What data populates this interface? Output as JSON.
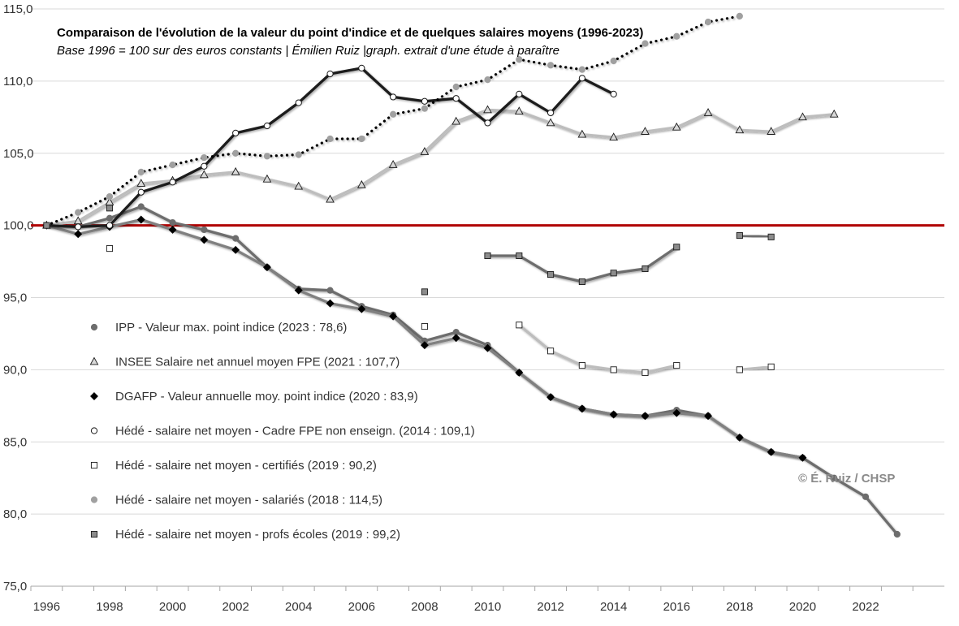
{
  "chart_data": {
    "type": "line",
    "title": "Comparaison de l'évolution de la valeur du point d'indice et de quelques salaires moyens (1996-2023)",
    "subtitle": "Base 1996 = 100 sur des euros constants | Émilien Ruiz |graph. extrait d'une étude à paraître",
    "credit": "© É. Ruiz / CHSP",
    "xlim": [
      1995.5,
      2024.5
    ],
    "ylim": [
      75,
      115
    ],
    "x_ticks": [
      1996,
      1998,
      2000,
      2002,
      2004,
      2006,
      2008,
      2010,
      2012,
      2014,
      2016,
      2018,
      2020,
      2022
    ],
    "y_ticks": [
      {
        "value": 75,
        "label": "75,0"
      },
      {
        "value": 80,
        "label": "80,0"
      },
      {
        "value": 85,
        "label": "85,0"
      },
      {
        "value": 90,
        "label": "90,0"
      },
      {
        "value": 95,
        "label": "95,0"
      },
      {
        "value": 100,
        "label": "100,0"
      },
      {
        "value": 105,
        "label": "105,0"
      },
      {
        "value": 110,
        "label": "110,0"
      },
      {
        "value": 115,
        "label": "115,0"
      }
    ],
    "grid": "horizontal",
    "reference_line": {
      "value": 100,
      "color": "#b00000"
    },
    "legend_position": "lower-left",
    "series": [
      {
        "name": "IPP - Valeur max. point indice (2023 : 78,6)",
        "color": "#6d6d6d",
        "marker": "circle",
        "marker_fill": "#6d6d6d",
        "dash": "solid",
        "x": [
          1996,
          1997,
          1998,
          1999,
          2000,
          2001,
          2002,
          2003,
          2004,
          2005,
          2006,
          2007,
          2008,
          2009,
          2010,
          2011,
          2012,
          2013,
          2014,
          2015,
          2016,
          2017,
          2018,
          2019,
          2020,
          2021,
          2022,
          2023
        ],
        "values": [
          100,
          99.9,
          100.5,
          101.3,
          100.2,
          99.7,
          99.1,
          97.1,
          95.6,
          95.5,
          94.4,
          93.8,
          92.0,
          92.6,
          91.7,
          89.8,
          88.1,
          87.3,
          86.9,
          86.8,
          87.2,
          86.8,
          85.3,
          84.3,
          83.9,
          82.5,
          81.2,
          78.6
        ]
      },
      {
        "name": "INSEE Salaire net annuel moyen FPE (2021 : 107,7)",
        "color": "#bdbdbd",
        "marker": "triangle",
        "marker_fill": "#d9d9d9",
        "dash": "solid",
        "x": [
          1996,
          1997,
          1998,
          1999,
          2000,
          2001,
          2002,
          2003,
          2004,
          2005,
          2006,
          2007,
          2008,
          2009,
          2010,
          2011,
          2012,
          2013,
          2014,
          2015,
          2016,
          2017,
          2018,
          2019,
          2020,
          2021
        ],
        "values": [
          100,
          100.3,
          101.6,
          102.9,
          103.1,
          103.5,
          103.7,
          103.2,
          102.7,
          101.8,
          102.8,
          104.2,
          105.1,
          107.2,
          108.0,
          107.9,
          107.1,
          106.3,
          106.1,
          106.5,
          106.8,
          107.8,
          106.6,
          106.5,
          107.5,
          107.7
        ]
      },
      {
        "name": "DGAFP - Valeur annuelle moy. point indice (2020 : 83,9)",
        "color": "#808080",
        "marker": "diamond",
        "marker_fill": "#000000",
        "dash": "solid",
        "x": [
          1996,
          1997,
          1998,
          1999,
          2000,
          2001,
          2002,
          2003,
          2004,
          2005,
          2006,
          2007,
          2008,
          2009,
          2010,
          2011,
          2012,
          2013,
          2014,
          2015,
          2016,
          2017,
          2018,
          2019,
          2020
        ],
        "values": [
          100,
          99.4,
          99.9,
          100.4,
          99.7,
          99.0,
          98.3,
          97.1,
          95.5,
          94.6,
          94.2,
          93.7,
          91.7,
          92.2,
          91.5,
          89.8,
          88.1,
          87.3,
          86.9,
          86.8,
          87.0,
          86.8,
          85.3,
          84.3,
          83.9
        ]
      },
      {
        "name": "Hédé - salaire net moyen - Cadre FPE non enseign. (2014 : 109,1)",
        "color": "#1c1c1c",
        "marker": "circle",
        "marker_fill": "#ffffff",
        "dash": "solid",
        "x": [
          1996,
          1997,
          1998,
          1999,
          2000,
          2001,
          2002,
          2003,
          2004,
          2005,
          2006,
          2007,
          2008,
          2009,
          2010,
          2011,
          2012,
          2013,
          2014
        ],
        "values": [
          100,
          99.9,
          100.0,
          102.3,
          103.0,
          104.1,
          106.4,
          106.9,
          108.5,
          110.5,
          110.9,
          108.9,
          108.6,
          108.8,
          107.1,
          109.1,
          107.8,
          110.2,
          109.1
        ]
      },
      {
        "name": "Hédé - salaire  net moyen - certifiés (2019 : 90,2)",
        "color": "#bdbdbd",
        "marker": "square",
        "marker_fill": "#ffffff",
        "dash": "solid",
        "x": [
          1996,
          1997,
          1998,
          1999,
          2000,
          2001,
          2002,
          2003,
          2004,
          2005,
          2006,
          2007,
          2008,
          2009,
          2010,
          2011,
          2012,
          2013,
          2014,
          2015,
          2016,
          2017,
          2018,
          2019
        ],
        "values": [
          null,
          null,
          98.4,
          null,
          null,
          null,
          null,
          null,
          null,
          null,
          null,
          null,
          93.0,
          null,
          null,
          93.1,
          91.3,
          90.3,
          90.0,
          89.8,
          90.3,
          null,
          90.0,
          90.2
        ]
      },
      {
        "name": "Hédé - salaire  net moyen - salariés (2018 : 114,5)",
        "color": "#000000",
        "marker": "circle",
        "marker_fill": "#a0a0a0",
        "dash": "dotted",
        "x": [
          1996,
          1997,
          1998,
          1999,
          2000,
          2001,
          2002,
          2003,
          2004,
          2005,
          2006,
          2007,
          2008,
          2009,
          2010,
          2011,
          2012,
          2013,
          2014,
          2015,
          2016,
          2017,
          2018
        ],
        "values": [
          100,
          100.9,
          102.0,
          103.7,
          104.2,
          104.7,
          105.0,
          104.8,
          104.9,
          106.0,
          106.0,
          107.7,
          108.1,
          109.6,
          110.1,
          111.5,
          111.1,
          110.8,
          111.4,
          112.6,
          113.1,
          114.1,
          114.5
        ]
      },
      {
        "name": "Hédé - salaire net moyen - profs   écoles (2019 : 99,2)",
        "color": "#6d6d6d",
        "marker": "square",
        "marker_fill": "#8c8c8c",
        "dash": "solid",
        "x": [
          1996,
          1997,
          1998,
          1999,
          2000,
          2001,
          2002,
          2003,
          2004,
          2005,
          2006,
          2007,
          2008,
          2009,
          2010,
          2011,
          2012,
          2013,
          2014,
          2015,
          2016,
          2017,
          2018,
          2019
        ],
        "values": [
          100,
          null,
          101.2,
          null,
          null,
          null,
          null,
          null,
          null,
          null,
          null,
          null,
          95.4,
          null,
          97.9,
          97.9,
          96.6,
          96.1,
          96.7,
          97.0,
          98.5,
          null,
          99.3,
          99.2
        ]
      }
    ]
  }
}
